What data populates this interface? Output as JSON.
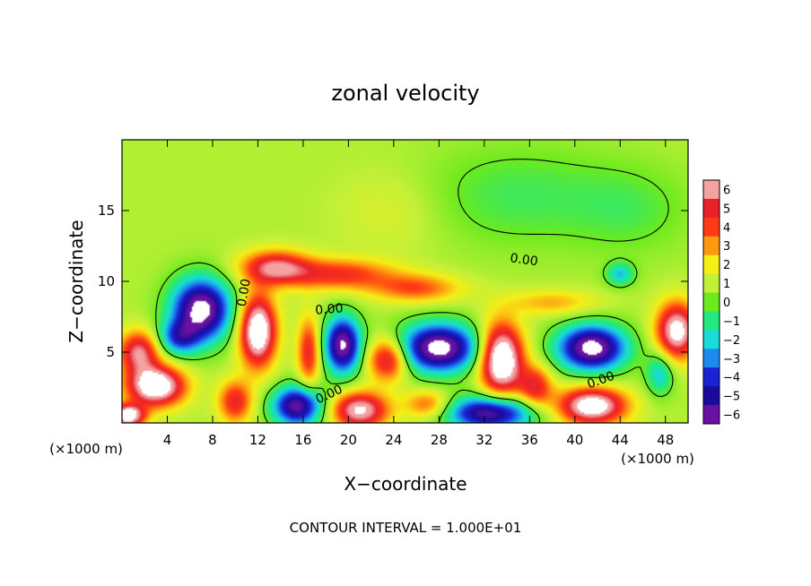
{
  "chart_data": {
    "type": "heatmap",
    "title": "zonal velocity",
    "xlabel": "X−coordinate",
    "ylabel": "Z−coordinate",
    "x_unit_label_left": "(×1000 m)",
    "x_unit_label_right": "(×1000 m)",
    "xlim": [
      0,
      50
    ],
    "ylim": [
      0,
      20
    ],
    "x_ticks": [
      {
        "value": 4,
        "label": "4"
      },
      {
        "value": 8,
        "label": "8"
      },
      {
        "value": 12,
        "label": "12"
      },
      {
        "value": 16,
        "label": "16"
      },
      {
        "value": 20,
        "label": "20"
      },
      {
        "value": 24,
        "label": "24"
      },
      {
        "value": 28,
        "label": "28"
      },
      {
        "value": 32,
        "label": "32"
      },
      {
        "value": 36,
        "label": "36"
      },
      {
        "value": 40,
        "label": "40"
      },
      {
        "value": 44,
        "label": "44"
      },
      {
        "value": 48,
        "label": "48"
      }
    ],
    "y_ticks": [
      {
        "value": 5,
        "label": "5"
      },
      {
        "value": 10,
        "label": "10"
      },
      {
        "value": 15,
        "label": "15"
      }
    ],
    "colorbar": {
      "levels": [
        6,
        5,
        4,
        3,
        2,
        1,
        0,
        -1,
        -2,
        -3,
        -4,
        -5,
        -6
      ],
      "labels": [
        "6",
        "5",
        "4",
        "3",
        "2",
        "1",
        "0",
        "−1",
        "−2",
        "−3",
        "−4",
        "−5",
        "−6"
      ],
      "colors": [
        "#f4a3a3",
        "#e8202a",
        "#ff3a14",
        "#ff9a10",
        "#f6ee16",
        "#c2f038",
        "#6cea1e",
        "#22e880",
        "#18dcd8",
        "#1a8aee",
        "#1a22d6",
        "#1a0c9a",
        "#6a10a4"
      ]
    },
    "contour_labels": [
      {
        "text": "0.00",
        "x": 35.5,
        "y": 11.5,
        "angle": 8
      },
      {
        "text": "0.00",
        "x": 10.8,
        "y": 9.2,
        "angle": -80
      },
      {
        "text": "0.00",
        "x": 18.3,
        "y": 8.0,
        "angle": -5
      },
      {
        "text": "0.00",
        "x": 42.3,
        "y": 3.0,
        "angle": -20
      },
      {
        "text": "0.00",
        "x": 18.3,
        "y": 2.0,
        "angle": -25
      }
    ],
    "field": {
      "background": 0.8,
      "features": [
        {
          "x": 35,
          "y": 16,
          "sx": 9,
          "sy": 3.5,
          "a": -1.4
        },
        {
          "x": 45,
          "y": 15,
          "sx": 5,
          "sy": 3,
          "a": -1.0
        },
        {
          "x": 24,
          "y": 15,
          "sx": 5,
          "sy": 3,
          "a": 0.8
        },
        {
          "x": 13.5,
          "y": 11,
          "sx": 3,
          "sy": 1.2,
          "a": 4.6
        },
        {
          "x": 19,
          "y": 10.5,
          "sx": 5,
          "sy": 1.1,
          "a": 3.6
        },
        {
          "x": 26,
          "y": 9.5,
          "sx": 4,
          "sy": 1.0,
          "a": 3.0
        },
        {
          "x": 38,
          "y": 8.5,
          "sx": 4,
          "sy": 0.9,
          "a": 2.0
        },
        {
          "x": 7,
          "y": 8,
          "sx": 2.6,
          "sy": 2.2,
          "a": -8
        },
        {
          "x": 5,
          "y": 6,
          "sx": 1.8,
          "sy": 1.2,
          "a": -4
        },
        {
          "x": 12,
          "y": 6.5,
          "sx": 1.6,
          "sy": 2.5,
          "a": 7.5
        },
        {
          "x": 3,
          "y": 2.6,
          "sx": 2.5,
          "sy": 1.4,
          "a": 7.5
        },
        {
          "x": 1.5,
          "y": 5,
          "sx": 1.8,
          "sy": 1.5,
          "a": 5
        },
        {
          "x": 19.5,
          "y": 5.5,
          "sx": 1.6,
          "sy": 2.0,
          "a": -7.5
        },
        {
          "x": 23.5,
          "y": 4.5,
          "sx": 1.8,
          "sy": 1.5,
          "a": 5
        },
        {
          "x": 16.5,
          "y": 5,
          "sx": 1.0,
          "sy": 2.5,
          "a": 4
        },
        {
          "x": 21,
          "y": 0.9,
          "sx": 2.5,
          "sy": 1.3,
          "a": 6
        },
        {
          "x": 15.5,
          "y": 1.2,
          "sx": 2.2,
          "sy": 1.4,
          "a": -7
        },
        {
          "x": 28,
          "y": 5.3,
          "sx": 3.5,
          "sy": 1.7,
          "a": -8
        },
        {
          "x": 33.5,
          "y": 4.5,
          "sx": 1.9,
          "sy": 2.5,
          "a": 8
        },
        {
          "x": 32.5,
          "y": 0.7,
          "sx": 3.8,
          "sy": 1.2,
          "a": -7
        },
        {
          "x": 41.5,
          "y": 5.3,
          "sx": 3.0,
          "sy": 1.6,
          "a": -8
        },
        {
          "x": 41.5,
          "y": 1.2,
          "sx": 3.0,
          "sy": 1.3,
          "a": 7
        },
        {
          "x": 49,
          "y": 6.5,
          "sx": 1.8,
          "sy": 2.0,
          "a": 6.5
        },
        {
          "x": 47.5,
          "y": 3.5,
          "sx": 1.2,
          "sy": 1.5,
          "a": -3
        },
        {
          "x": 27,
          "y": 1.3,
          "sx": 2.0,
          "sy": 1.0,
          "a": 3
        },
        {
          "x": 36.5,
          "y": 2.5,
          "sx": 1.5,
          "sy": 1.5,
          "a": 4
        },
        {
          "x": 44,
          "y": 10.5,
          "sx": 1.2,
          "sy": 0.8,
          "a": -3
        },
        {
          "x": 10,
          "y": 1.5,
          "sx": 1.5,
          "sy": 1.5,
          "a": 4
        },
        {
          "x": 0.5,
          "y": 0.5,
          "sx": 1.5,
          "sy": 0.8,
          "a": 7
        }
      ]
    },
    "footer": "CONTOUR INTERVAL = 1.000E+01"
  }
}
